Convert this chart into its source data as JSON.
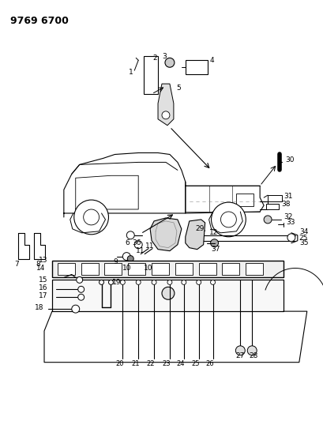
{
  "title": "9769 6700",
  "bg_color": "#ffffff",
  "fg_color": "#000000",
  "title_fontsize": 9,
  "figsize": [
    4.1,
    5.33
  ],
  "dpi": 100
}
